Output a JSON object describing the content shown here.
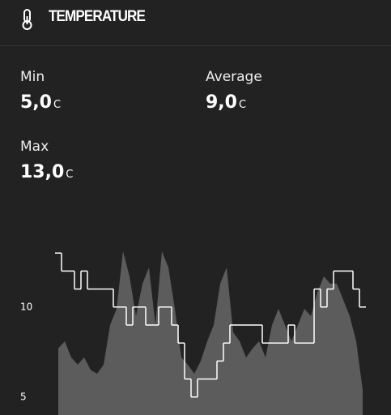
{
  "header": {
    "title": "TEMPERATURE"
  },
  "stats": [
    {
      "label": "Min",
      "value": "5,0",
      "unit": "C"
    },
    {
      "label": "Average",
      "value": "9,0",
      "unit": "C"
    },
    {
      "label": "Max",
      "value": "13,0",
      "unit": "C"
    }
  ],
  "chart_data": {
    "type": "line",
    "ylim": [
      4,
      14
    ],
    "yticks": [
      5,
      10
    ],
    "series": [
      {
        "color": "#ffffff",
        "style": "step",
        "values": [
          13,
          12,
          12,
          11,
          12,
          11,
          11,
          11,
          11,
          10,
          10,
          9,
          10,
          10,
          9,
          9,
          10,
          10,
          9,
          8,
          6,
          5,
          6,
          6,
          6,
          7,
          8,
          9,
          9,
          9,
          9,
          9,
          8,
          8,
          8,
          8,
          9,
          8,
          8,
          8,
          11,
          10,
          11,
          12,
          12,
          12,
          11,
          10
        ]
      },
      {
        "color": "#5c5c5c",
        "style": "area",
        "values": [
          7.7,
          8.1,
          7.2,
          6.8,
          7.2,
          6.5,
          6.3,
          6.8,
          9.0,
          9.9,
          13.1,
          11.7,
          9.5,
          11.3,
          12.2,
          9.0,
          13.1,
          12.2,
          9.9,
          7.2,
          6.8,
          6.3,
          7.0,
          8.1,
          9.0,
          11.3,
          12.2,
          8.6,
          8.1,
          7.2,
          7.7,
          8.1,
          7.2,
          9.0,
          9.9,
          9.0,
          8.1,
          9.0,
          9.9,
          9.5,
          10.8,
          11.7,
          11.3,
          11.3,
          10.4,
          9.5,
          8.1,
          5.4
        ]
      }
    ]
  }
}
